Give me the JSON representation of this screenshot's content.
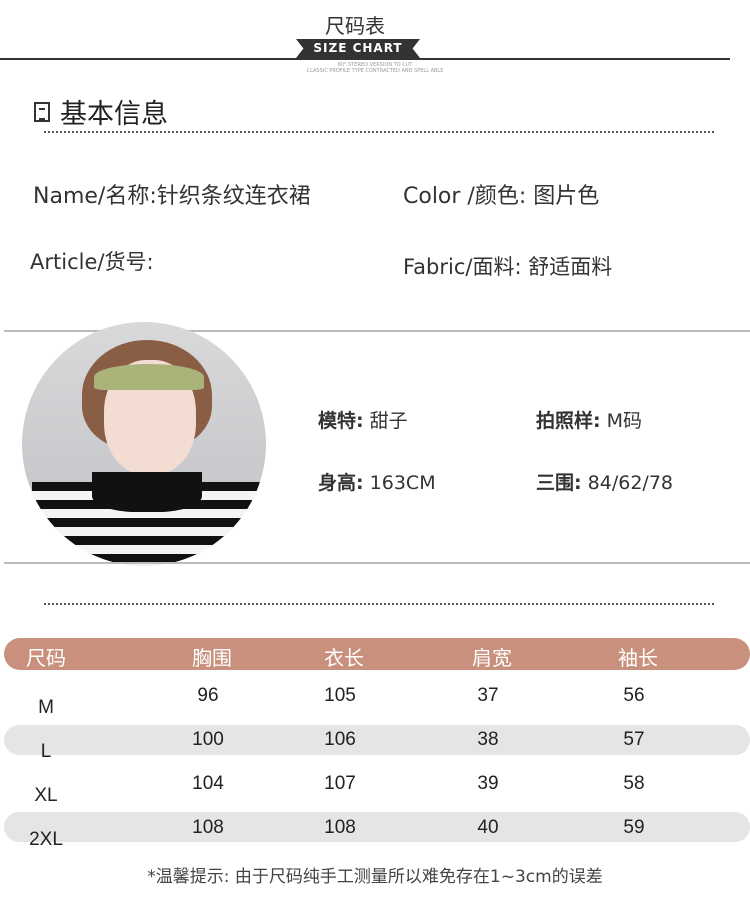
{
  "header": {
    "title_cn": "尺码表",
    "banner": "SIZE CHART",
    "tiny1": "60° STEREO VERSION TO CUT",
    "tiny2": "CLASSIC PROFILE TYPE CONTRACTED AND SPELL ABLE"
  },
  "basic": {
    "heading": "基本信息",
    "name": "Name/名称:针织条纹连衣裙",
    "color": "Color /颜色: 图片色",
    "article": "Article/货号:",
    "fabric": "Fabric/面料: 舒适面料"
  },
  "model": {
    "name_label": "模特:",
    "name_value": "甜子",
    "size_label": "拍照样:",
    "size_value": "M码",
    "height_label": "身高:",
    "height_value": "163CM",
    "measure_label": "三围:",
    "measure_value": "84/62/78"
  },
  "table": {
    "headers": [
      "尺码",
      "胸围",
      "衣长",
      "肩宽",
      "袖长"
    ],
    "rows": [
      [
        "M",
        "96",
        "105",
        "37",
        "56"
      ],
      [
        "L",
        "100",
        "106",
        "38",
        "57"
      ],
      [
        "XL",
        "104",
        "107",
        "39",
        "58"
      ],
      [
        "2XL",
        "108",
        "108",
        "40",
        "59"
      ]
    ]
  },
  "note": "*温馨提示: 由于尺码纯手工测量所以难免存在1~3cm的误差",
  "colors": {
    "header_bg": "#c9917d",
    "stripe": "#e5e5e5"
  }
}
